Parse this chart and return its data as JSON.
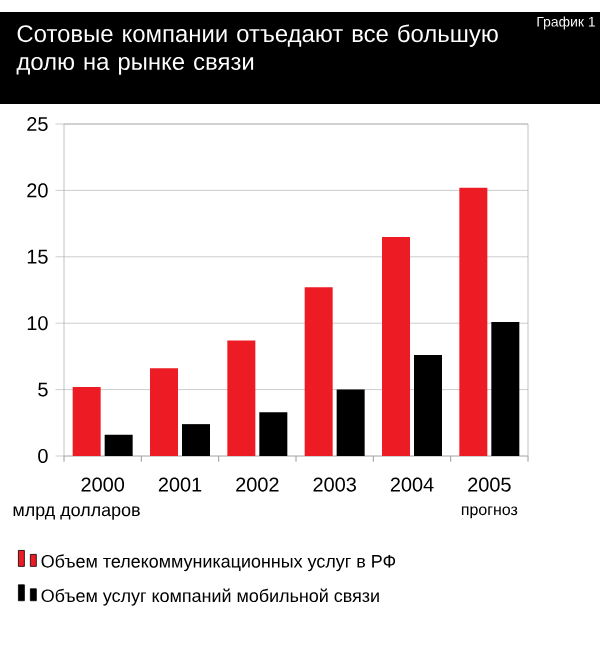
{
  "chart_data": {
    "type": "bar",
    "title": "Сотовые компании отъедают все большую долю на рынке связи",
    "categories": [
      "2000",
      "2001",
      "2002",
      "2003",
      "2004",
      "2005"
    ],
    "series": [
      {
        "name": "Объем телекоммуникационных услуг в РФ",
        "color": "#ed1c24",
        "values": [
          5.2,
          6.6,
          8.7,
          12.7,
          16.5,
          20.2
        ]
      },
      {
        "name": "Объем услуг компаний мобильной связи",
        "color": "#000000",
        "values": [
          1.6,
          2.4,
          3.3,
          5.0,
          7.6,
          10.1
        ]
      }
    ],
    "ylim": [
      0,
      25
    ],
    "yticks": [
      0,
      5,
      10,
      15,
      20,
      25
    ],
    "grid": "y",
    "legend": "bottom",
    "annotations": [
      "График 1",
      "млрд долларов",
      "прогноз"
    ]
  }
}
